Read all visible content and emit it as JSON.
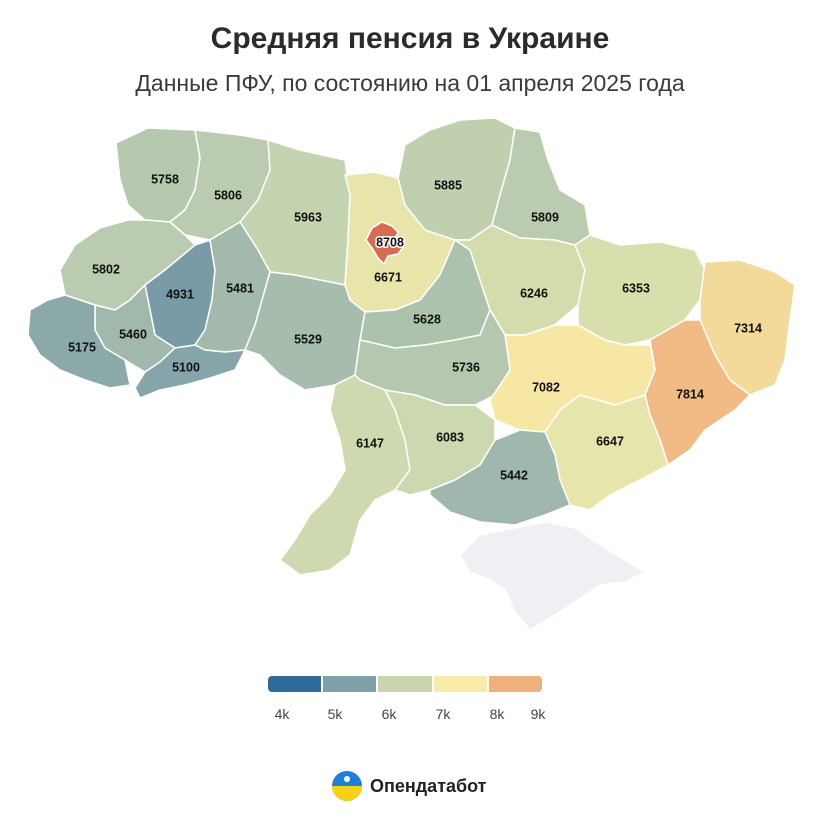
{
  "title": "Средняя пенсия в Украине",
  "subtitle": "Данные ПФУ, по состоянию на 01 апреля 2025 года",
  "legend": {
    "ticks": [
      "4k",
      "5k",
      "6k",
      "7k",
      "8k",
      "9k"
    ],
    "colors": [
      "#2f6b99",
      "#7f9fa9",
      "#c8d6b0",
      "#f7eda8",
      "#eeb07d",
      "#c95140"
    ]
  },
  "brand": {
    "name": "Опендатабот"
  },
  "chart_data": {
    "type": "choropleth",
    "scale_min": 4000,
    "scale_max": 9000,
    "regions": [
      {
        "id": "volyn",
        "value": 5758
      },
      {
        "id": "rivne",
        "value": 5806
      },
      {
        "id": "zhytomyr",
        "value": 5963
      },
      {
        "id": "kyiv-oblast",
        "value": 6671
      },
      {
        "id": "kyiv-city",
        "value": 8708
      },
      {
        "id": "chernihiv",
        "value": 5885
      },
      {
        "id": "sumy",
        "value": 5809
      },
      {
        "id": "lviv",
        "value": 5802
      },
      {
        "id": "ternopil",
        "value": 4931
      },
      {
        "id": "khmelnytskyi",
        "value": 5481
      },
      {
        "id": "vinnytsia",
        "value": 5529
      },
      {
        "id": "cherkasy",
        "value": 5628
      },
      {
        "id": "poltava",
        "value": 6246
      },
      {
        "id": "kharkiv",
        "value": 6353
      },
      {
        "id": "luhansk",
        "value": 7314
      },
      {
        "id": "ivano-frankivsk",
        "value": 5460
      },
      {
        "id": "zakarpattia",
        "value": 5175
      },
      {
        "id": "chernivtsi",
        "value": 5100
      },
      {
        "id": "kirovohrad",
        "value": 5736
      },
      {
        "id": "dnipropetrovsk",
        "value": 7082
      },
      {
        "id": "donetsk",
        "value": 7814
      },
      {
        "id": "odesa",
        "value": 6147
      },
      {
        "id": "mykolaiv",
        "value": 6083
      },
      {
        "id": "zaporizhzhia",
        "value": 6647
      },
      {
        "id": "kherson",
        "value": 5442
      },
      {
        "id": "crimea",
        "value": null
      }
    ]
  }
}
